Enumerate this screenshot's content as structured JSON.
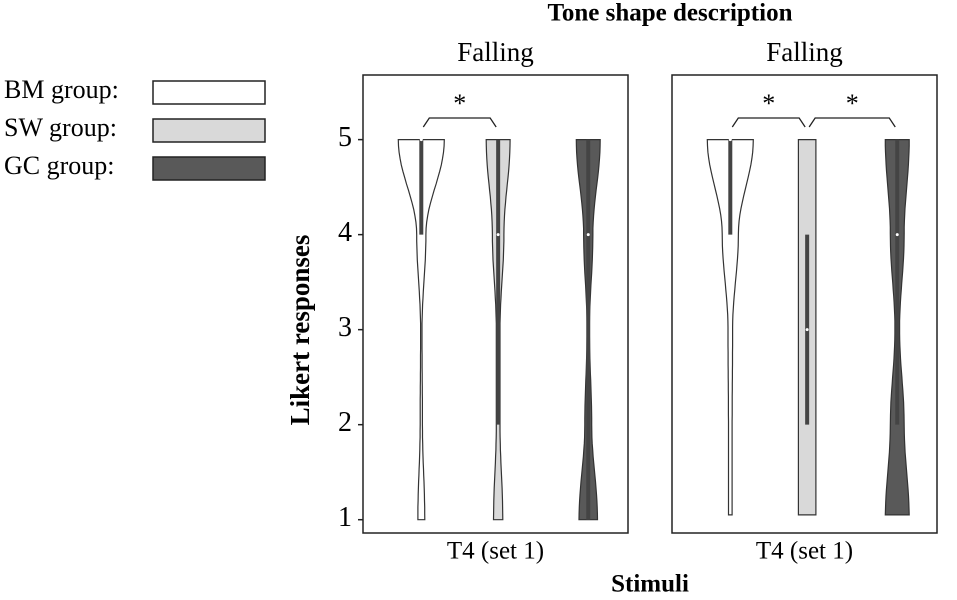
{
  "chart_data": {
    "type": "violin",
    "title": "Tone shape description",
    "y_label": "Likert responses",
    "x_label": "Stimuli",
    "ylim": [
      0.86,
      5.68
    ],
    "yticks": [
      1,
      2,
      3,
      4,
      5
    ],
    "levels": [
      1,
      2,
      3,
      4,
      5
    ],
    "legend": [
      {
        "name": "BM group:",
        "color": "#ffffff"
      },
      {
        "name": "SW group:",
        "color": "#d9d9d9"
      },
      {
        "name": "GC group:",
        "color": "#595959"
      }
    ],
    "panels": [
      {
        "title": "Falling",
        "category": "T4 (set 1)",
        "violins": [
          {
            "density": [
              0.15,
              0.05,
              0.03,
              0.2,
              1
            ],
            "min": 1,
            "max": 5,
            "q1": 4,
            "q3": 5,
            "median": 5
          },
          {
            "density": [
              0.2,
              0.08,
              0.08,
              0.25,
              0.52
            ],
            "min": 1,
            "max": 5,
            "q1": 2,
            "q3": 5,
            "median": 4
          },
          {
            "density": [
              0.4,
              0.15,
              0.05,
              0.2,
              0.52
            ],
            "min": 1,
            "max": 5,
            "q1": 1,
            "q3": 5,
            "median": 4
          }
        ],
        "comparisons": [
          {
            "label": "*",
            "from": 0,
            "to": 1
          }
        ]
      },
      {
        "title": "Falling",
        "category": "T4 (set 1)",
        "violins": [
          {
            "density": [
              0.08,
              0.08,
              0.1,
              0.35,
              1
            ],
            "min": 1.05,
            "max": 5,
            "q1": 4,
            "q3": 5,
            "median": 5
          },
          {
            "density": [
              0.38,
              0.38,
              0.38,
              0.38,
              0.38
            ],
            "min": 1.05,
            "max": 5,
            "q1": 2,
            "q3": 4,
            "median": 3
          },
          {
            "density": [
              0.52,
              0.3,
              0.1,
              0.3,
              0.52
            ],
            "min": 1.05,
            "max": 5,
            "q1": 2,
            "q3": 5,
            "median": 4
          }
        ],
        "comparisons": [
          {
            "label": "*",
            "from": 0,
            "to": 1
          },
          {
            "label": "*",
            "from": 1,
            "to": 2
          }
        ]
      }
    ]
  }
}
